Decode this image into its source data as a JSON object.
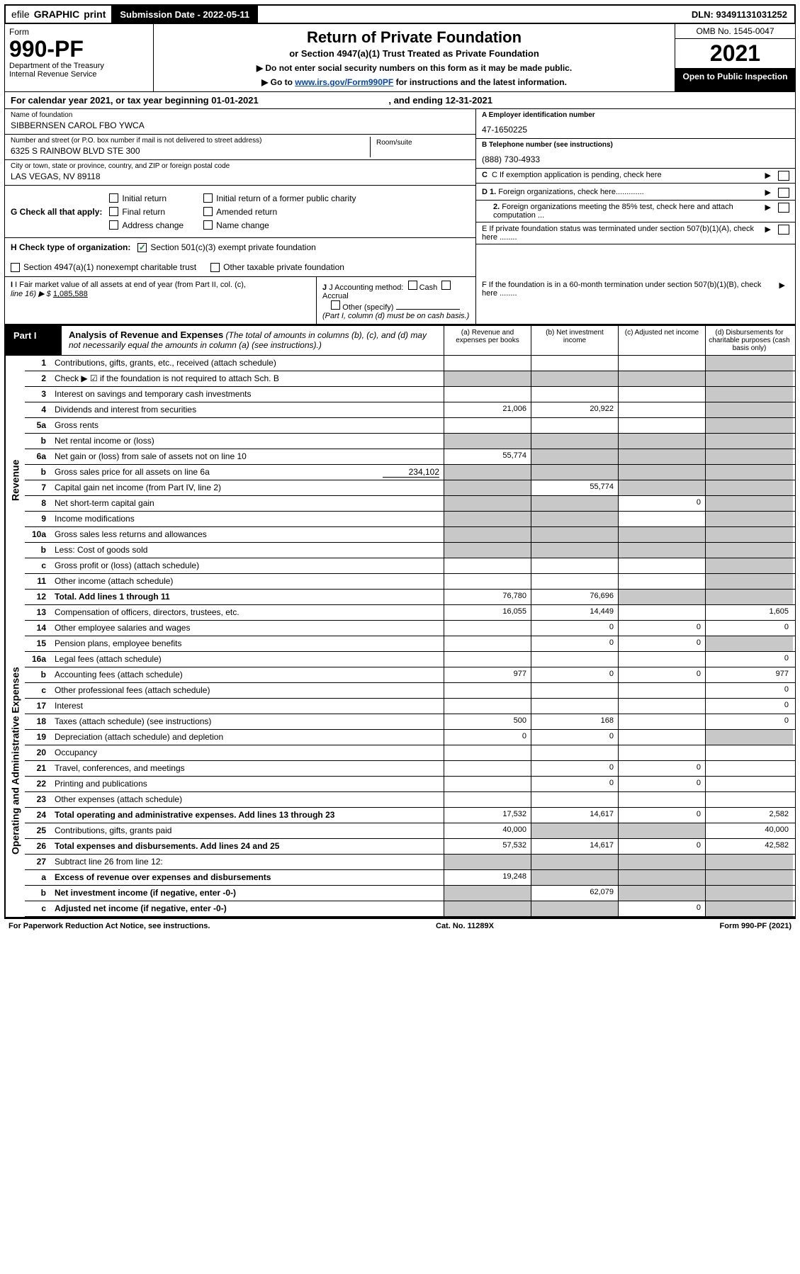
{
  "top_bar": {
    "efile_prefix": "efile",
    "efile_graphic": "GRAPHIC",
    "efile_print": "print",
    "submission_label": "Submission Date - 2022-05-11",
    "dln": "DLN: 93491131031252"
  },
  "header": {
    "form_word": "Form",
    "form_number": "990-PF",
    "dept": "Department of the Treasury",
    "irs": "Internal Revenue Service",
    "title": "Return of Private Foundation",
    "subtitle": "or Section 4947(a)(1) Trust Treated as Private Foundation",
    "instr1": "▶ Do not enter social security numbers on this form as it may be made public.",
    "instr2_prefix": "▶ Go to ",
    "instr2_link": "www.irs.gov/Form990PF",
    "instr2_suffix": " for instructions and the latest information.",
    "omb": "OMB No. 1545-0047",
    "year": "2021",
    "open": "Open to Public Inspection"
  },
  "cal_year": {
    "prefix": "For calendar year 2021, or tax year beginning ",
    "begin": "01-01-2021",
    "mid": " , and ending ",
    "end": "12-31-2021"
  },
  "info": {
    "name_label": "Name of foundation",
    "name": "SIBBERNSEN CAROL FBO YWCA",
    "ein_label": "A Employer identification number",
    "ein": "47-1650225",
    "addr_label": "Number and street (or P.O. box number if mail is not delivered to street address)",
    "addr": "6325 S RAINBOW BLVD STE 300",
    "room_label": "Room/suite",
    "tel_label": "B Telephone number (see instructions)",
    "tel": "(888) 730-4933",
    "city_label": "City or town, state or province, country, and ZIP or foreign postal code",
    "city": "LAS VEGAS, NV  89118",
    "c_text": "C If exemption application is pending, check here"
  },
  "g_check": {
    "label": "G Check all that apply:",
    "initial": "Initial return",
    "final": "Final return",
    "address": "Address change",
    "initial_former": "Initial return of a former public charity",
    "amended": "Amended return",
    "name_change": "Name change"
  },
  "h_check": {
    "label": "H Check type of organization:",
    "c1": "Section 501(c)(3) exempt private foundation",
    "c2": "Section 4947(a)(1) nonexempt charitable trust",
    "c3": "Other taxable private foundation"
  },
  "d_check": {
    "d1": "D 1. Foreign organizations, check here.............",
    "d2": "2. Foreign organizations meeting the 85% test, check here and attach computation ...",
    "e": "E  If private foundation status was terminated under section 507(b)(1)(A), check here ........",
    "f": "F  If the foundation is in a 60-month termination under section 507(b)(1)(B), check here ........"
  },
  "i_block": {
    "label": "I Fair market value of all assets at end of year (from Part II, col. (c),",
    "line_label": "line 16) ▶ $",
    "value": "1,085,588"
  },
  "j_block": {
    "label": "J Accounting method:",
    "cash": "Cash",
    "accrual": "Accrual",
    "other": "Other (specify)",
    "note": "(Part I, column (d) must be on cash basis.)"
  },
  "part1": {
    "label": "Part I",
    "title": "Analysis of Revenue and Expenses",
    "title_note": " (The total of amounts in columns (b), (c), and (d) may not necessarily equal the amounts in column (a) (see instructions).)",
    "col_a": "(a)   Revenue and expenses per books",
    "col_b": "(b)   Net investment income",
    "col_c": "(c)   Adjusted net income",
    "col_d": "(d)   Disbursements for charitable purposes (cash basis only)"
  },
  "sides": {
    "revenue": "Revenue",
    "expenses": "Operating and Administrative Expenses"
  },
  "rows": {
    "r1": {
      "n": "1",
      "d": "Contributions, gifts, grants, etc., received (attach schedule)"
    },
    "r2": {
      "n": "2",
      "d": "Check ▶ ☑ if the foundation is not required to attach Sch. B"
    },
    "r3": {
      "n": "3",
      "d": "Interest on savings and temporary cash investments"
    },
    "r4": {
      "n": "4",
      "d": "Dividends and interest from securities",
      "a": "21,006",
      "b": "20,922"
    },
    "r5a": {
      "n": "5a",
      "d": "Gross rents"
    },
    "r5b": {
      "n": "b",
      "d": "Net rental income or (loss)"
    },
    "r6a": {
      "n": "6a",
      "d": "Net gain or (loss) from sale of assets not on line 10",
      "a": "55,774"
    },
    "r6b": {
      "n": "b",
      "d": "Gross sales price for all assets on line 6a",
      "inline": "234,102"
    },
    "r7": {
      "n": "7",
      "d": "Capital gain net income (from Part IV, line 2)",
      "b": "55,774"
    },
    "r8": {
      "n": "8",
      "d": "Net short-term capital gain",
      "c": "0"
    },
    "r9": {
      "n": "9",
      "d": "Income modifications"
    },
    "r10a": {
      "n": "10a",
      "d": "Gross sales less returns and allowances"
    },
    "r10b": {
      "n": "b",
      "d": "Less: Cost of goods sold"
    },
    "r10c": {
      "n": "c",
      "d": "Gross profit or (loss) (attach schedule)"
    },
    "r11": {
      "n": "11",
      "d": "Other income (attach schedule)"
    },
    "r12": {
      "n": "12",
      "d": "Total. Add lines 1 through 11",
      "a": "76,780",
      "b": "76,696",
      "bold": true
    },
    "r13": {
      "n": "13",
      "d": "Compensation of officers, directors, trustees, etc.",
      "a": "16,055",
      "b": "14,449",
      "dd": "1,605"
    },
    "r14": {
      "n": "14",
      "d": "Other employee salaries and wages",
      "b": "0",
      "c": "0",
      "dd": "0"
    },
    "r15": {
      "n": "15",
      "d": "Pension plans, employee benefits",
      "b": "0",
      "c": "0"
    },
    "r16a": {
      "n": "16a",
      "d": "Legal fees (attach schedule)",
      "dd": "0"
    },
    "r16b": {
      "n": "b",
      "d": "Accounting fees (attach schedule)",
      "a": "977",
      "b": "0",
      "c": "0",
      "dd": "977"
    },
    "r16c": {
      "n": "c",
      "d": "Other professional fees (attach schedule)",
      "dd": "0"
    },
    "r17": {
      "n": "17",
      "d": "Interest",
      "dd": "0"
    },
    "r18": {
      "n": "18",
      "d": "Taxes (attach schedule) (see instructions)",
      "a": "500",
      "b": "168",
      "dd": "0"
    },
    "r19": {
      "n": "19",
      "d": "Depreciation (attach schedule) and depletion",
      "a": "0",
      "b": "0"
    },
    "r20": {
      "n": "20",
      "d": "Occupancy"
    },
    "r21": {
      "n": "21",
      "d": "Travel, conferences, and meetings",
      "b": "0",
      "c": "0"
    },
    "r22": {
      "n": "22",
      "d": "Printing and publications",
      "b": "0",
      "c": "0"
    },
    "r23": {
      "n": "23",
      "d": "Other expenses (attach schedule)"
    },
    "r24": {
      "n": "24",
      "d": "Total operating and administrative expenses. Add lines 13 through 23",
      "a": "17,532",
      "b": "14,617",
      "c": "0",
      "dd": "2,582",
      "bold": true
    },
    "r25": {
      "n": "25",
      "d": "Contributions, gifts, grants paid",
      "a": "40,000",
      "dd": "40,000"
    },
    "r26": {
      "n": "26",
      "d": "Total expenses and disbursements. Add lines 24 and 25",
      "a": "57,532",
      "b": "14,617",
      "c": "0",
      "dd": "42,582",
      "bold": true
    },
    "r27": {
      "n": "27",
      "d": "Subtract line 26 from line 12:"
    },
    "r27a": {
      "n": "a",
      "d": "Excess of revenue over expenses and disbursements",
      "a": "19,248",
      "bold": true
    },
    "r27b": {
      "n": "b",
      "d": "Net investment income (if negative, enter -0-)",
      "b": "62,079",
      "bold": true
    },
    "r27c": {
      "n": "c",
      "d": "Adjusted net income (if negative, enter -0-)",
      "c": "0",
      "bold": true
    }
  },
  "footer": {
    "left": "For Paperwork Reduction Act Notice, see instructions.",
    "mid": "Cat. No. 11289X",
    "right": "Form 990-PF (2021)"
  },
  "colors": {
    "black": "#000000",
    "grey_cell": "#c8c8c8",
    "link": "#0645ad",
    "check_green": "#1a7f37"
  }
}
